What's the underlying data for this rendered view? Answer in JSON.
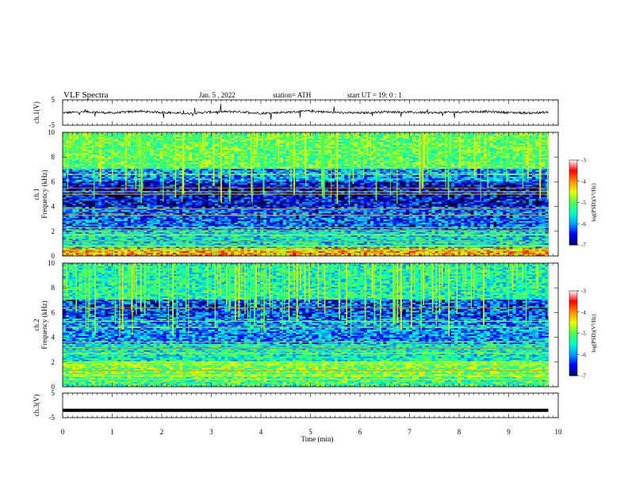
{
  "header": {
    "title": "VLF  Spectra",
    "date": "Jan.  5   , 2022",
    "station": "station= ATH",
    "start": "start  UT  =    19: 0   : 1"
  },
  "colors": {
    "background": "#ffffff",
    "axis": "#000000",
    "spectrogram_floor": "#00003c",
    "colormap": [
      "#00006e",
      "#0000ff",
      "#00a0ff",
      "#00ffc8",
      "#50ff50",
      "#e6ff00",
      "#ff8c00",
      "#ff0000",
      "#ffffff"
    ]
  },
  "chart_data": [
    {
      "type": "line",
      "panel": "ch1_waveform",
      "ylabel": "ch.1(V)",
      "ylim": [
        -5,
        5
      ],
      "yticks": [
        "5",
        "-5"
      ],
      "x": [
        0,
        0.5,
        1,
        1.5,
        2,
        2.5,
        3,
        3.5,
        4,
        4.5,
        5,
        5.5,
        6,
        6.5,
        7,
        7.5,
        8,
        8.5,
        9,
        9.5,
        9.8
      ],
      "y": [
        -0.1,
        0.3,
        -0.2,
        0.5,
        0.1,
        -0.4,
        0.2,
        0.4,
        -0.3,
        0.1,
        0.6,
        0.0,
        -0.2,
        0.3,
        0.1,
        -0.1,
        0.2,
        0.4,
        0.0,
        -0.2,
        0.1
      ],
      "xlim": [
        0,
        10
      ]
    },
    {
      "type": "heatmap",
      "panel": "ch1_spectrogram",
      "ylabel": "ch.1\nFrequency  (kHz)",
      "ylim": [
        0,
        10
      ],
      "yticks": [
        "10",
        "8",
        "6",
        "4",
        "2",
        "0"
      ],
      "xlim": [
        0,
        10
      ],
      "data_end_min": 9.8,
      "colorbar": {
        "label": "log(PSD)(V²/Hz)",
        "range": [
          -7,
          -3
        ],
        "ticks": [
          "-3",
          "-4",
          "-5",
          "-6",
          "-7"
        ]
      },
      "bands_khz": [
        {
          "from": 7.0,
          "to": 10.0,
          "level": -5.0
        },
        {
          "from": 6.0,
          "to": 7.0,
          "level": -6.0
        },
        {
          "from": 4.0,
          "to": 6.0,
          "level": -6.6
        },
        {
          "from": 2.0,
          "to": 4.0,
          "level": -6.2
        },
        {
          "from": 0.6,
          "to": 2.0,
          "level": -5.6
        },
        {
          "from": 0.0,
          "to": 0.6,
          "level": -4.2
        }
      ],
      "lines_khz": [
        6.6,
        5.5,
        5.2,
        5.0,
        3.8,
        3.3,
        2.3,
        2.1,
        1.7,
        1.2,
        0.8,
        0.5
      ]
    },
    {
      "type": "heatmap",
      "panel": "ch2_spectrogram",
      "ylabel": "ch.2\nFrequency  (kHz)",
      "ylim": [
        0,
        10
      ],
      "yticks": [
        "10",
        "8",
        "6",
        "4",
        "2",
        "0"
      ],
      "xlim": [
        0,
        10
      ],
      "data_end_min": 9.8,
      "colorbar": {
        "label": "log(PSD)(V²/Hz)",
        "range": [
          -7,
          -3
        ],
        "ticks": [
          "-3",
          "-4",
          "-5",
          "-6",
          "-7"
        ]
      },
      "bands_khz": [
        {
          "from": 7.0,
          "to": 10.0,
          "level": -5.4
        },
        {
          "from": 5.5,
          "to": 7.0,
          "level": -6.3
        },
        {
          "from": 3.5,
          "to": 5.5,
          "level": -6.0
        },
        {
          "from": 2.0,
          "to": 3.5,
          "level": -5.5
        },
        {
          "from": 0.8,
          "to": 2.0,
          "level": -4.9
        },
        {
          "from": 0.0,
          "to": 0.8,
          "level": -5.2
        }
      ],
      "lines_khz": [
        6.4,
        5.3,
        4.8,
        3.6,
        3.1,
        2.7,
        2.0,
        1.8,
        1.3,
        0.9,
        0.6
      ]
    },
    {
      "type": "line",
      "panel": "ch3_waveform",
      "ylabel": "ch.3(V)",
      "ylim": [
        -5,
        5
      ],
      "yticks": [
        "5",
        "-5"
      ],
      "x": [
        0,
        9.8
      ],
      "y": [
        -2.0,
        -2.0
      ],
      "xlim": [
        0,
        10
      ]
    }
  ],
  "xaxis": {
    "label": "Time  (min)",
    "ticks": [
      "0",
      "1",
      "2",
      "3",
      "4",
      "5",
      "6",
      "7",
      "8",
      "9",
      "10"
    ]
  }
}
